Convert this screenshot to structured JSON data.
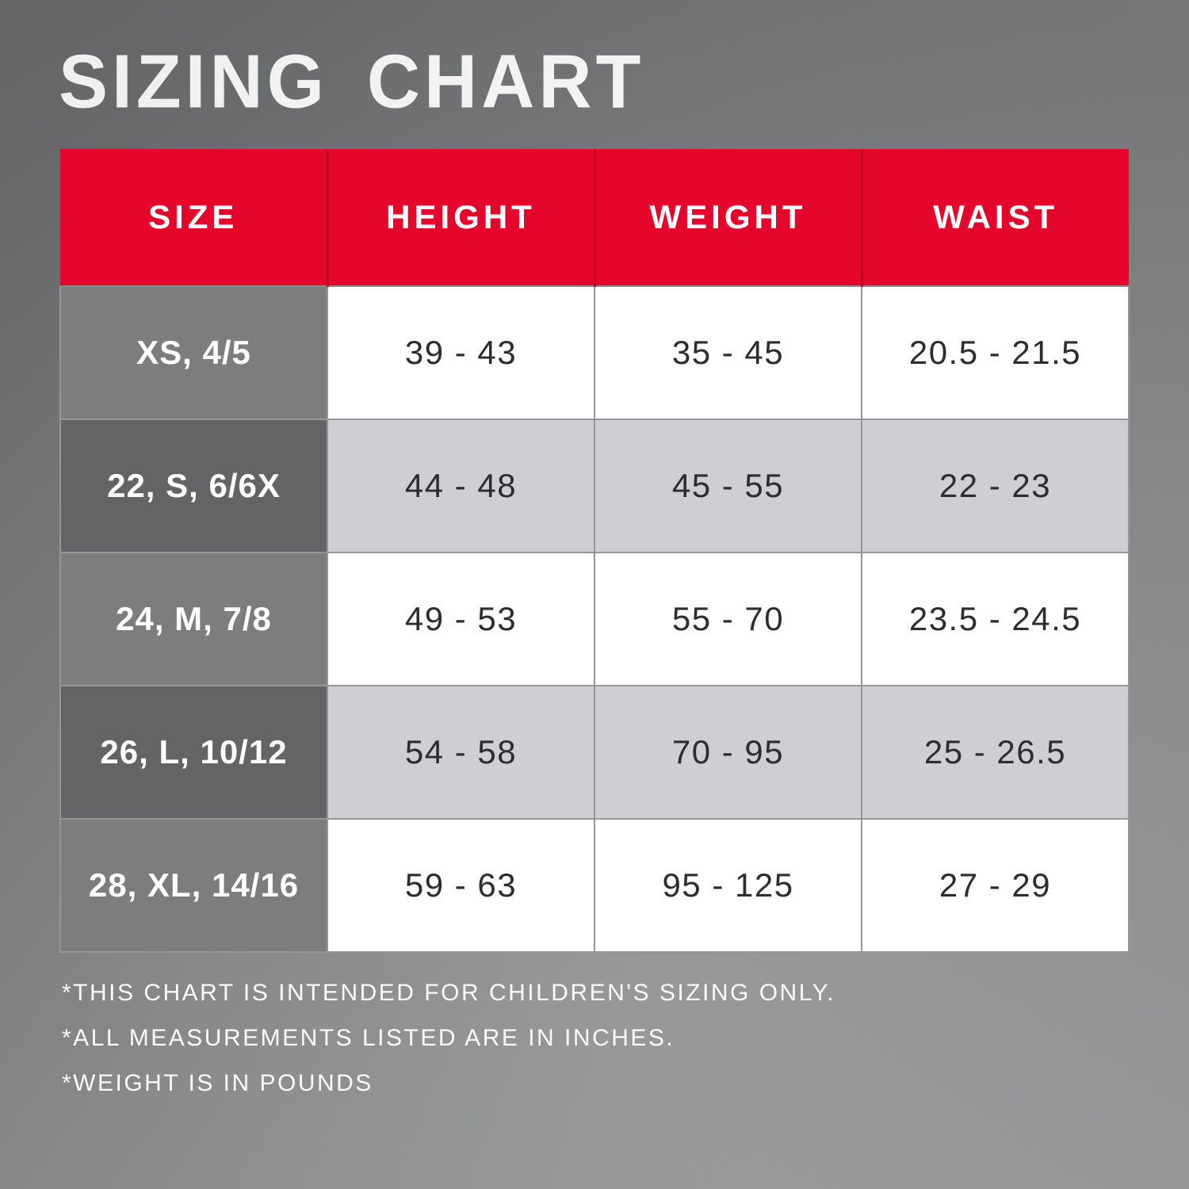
{
  "chart_data": {
    "type": "table",
    "title": "SIZING CHART",
    "columns": [
      "SIZE",
      "HEIGHT",
      "WEIGHT",
      "WAIST"
    ],
    "rows": [
      [
        "XS, 4/5",
        "39 - 43",
        "35 - 45",
        "20.5 - 21.5"
      ],
      [
        "22, S, 6/6X",
        "44 - 48",
        "45 - 55",
        "22 - 23"
      ],
      [
        "24, M, 7/8",
        "49 - 53",
        "55 - 70",
        "23.5 - 24.5"
      ],
      [
        "26, L, 10/12",
        "54 - 58",
        "70 - 95",
        "25 - 26.5"
      ],
      [
        "28, XL, 14/16",
        "59 - 63",
        "95 - 125",
        "27 - 29"
      ]
    ],
    "notes": [
      "*THIS CHART IS INTENDED FOR CHILDREN'S SIZING ONLY.",
      "*ALL MEASUREMENTS LISTED ARE IN INCHES.",
      "*WEIGHT IS IN POUNDS"
    ],
    "layout_hints": {
      "header_fill": "#e4062b",
      "size_column_fill_odd": "#7d7d7e",
      "size_column_fill_even": "#646466",
      "data_cell_fill_odd": "#ffffff",
      "data_cell_fill_even": "#cdcfd2",
      "grid_line_color": "#95959a",
      "background_dark": "#696a6b",
      "background_light": "#9b9b9c",
      "header_text_color": "#ffffff",
      "data_text_color": "#2d2d30"
    }
  }
}
